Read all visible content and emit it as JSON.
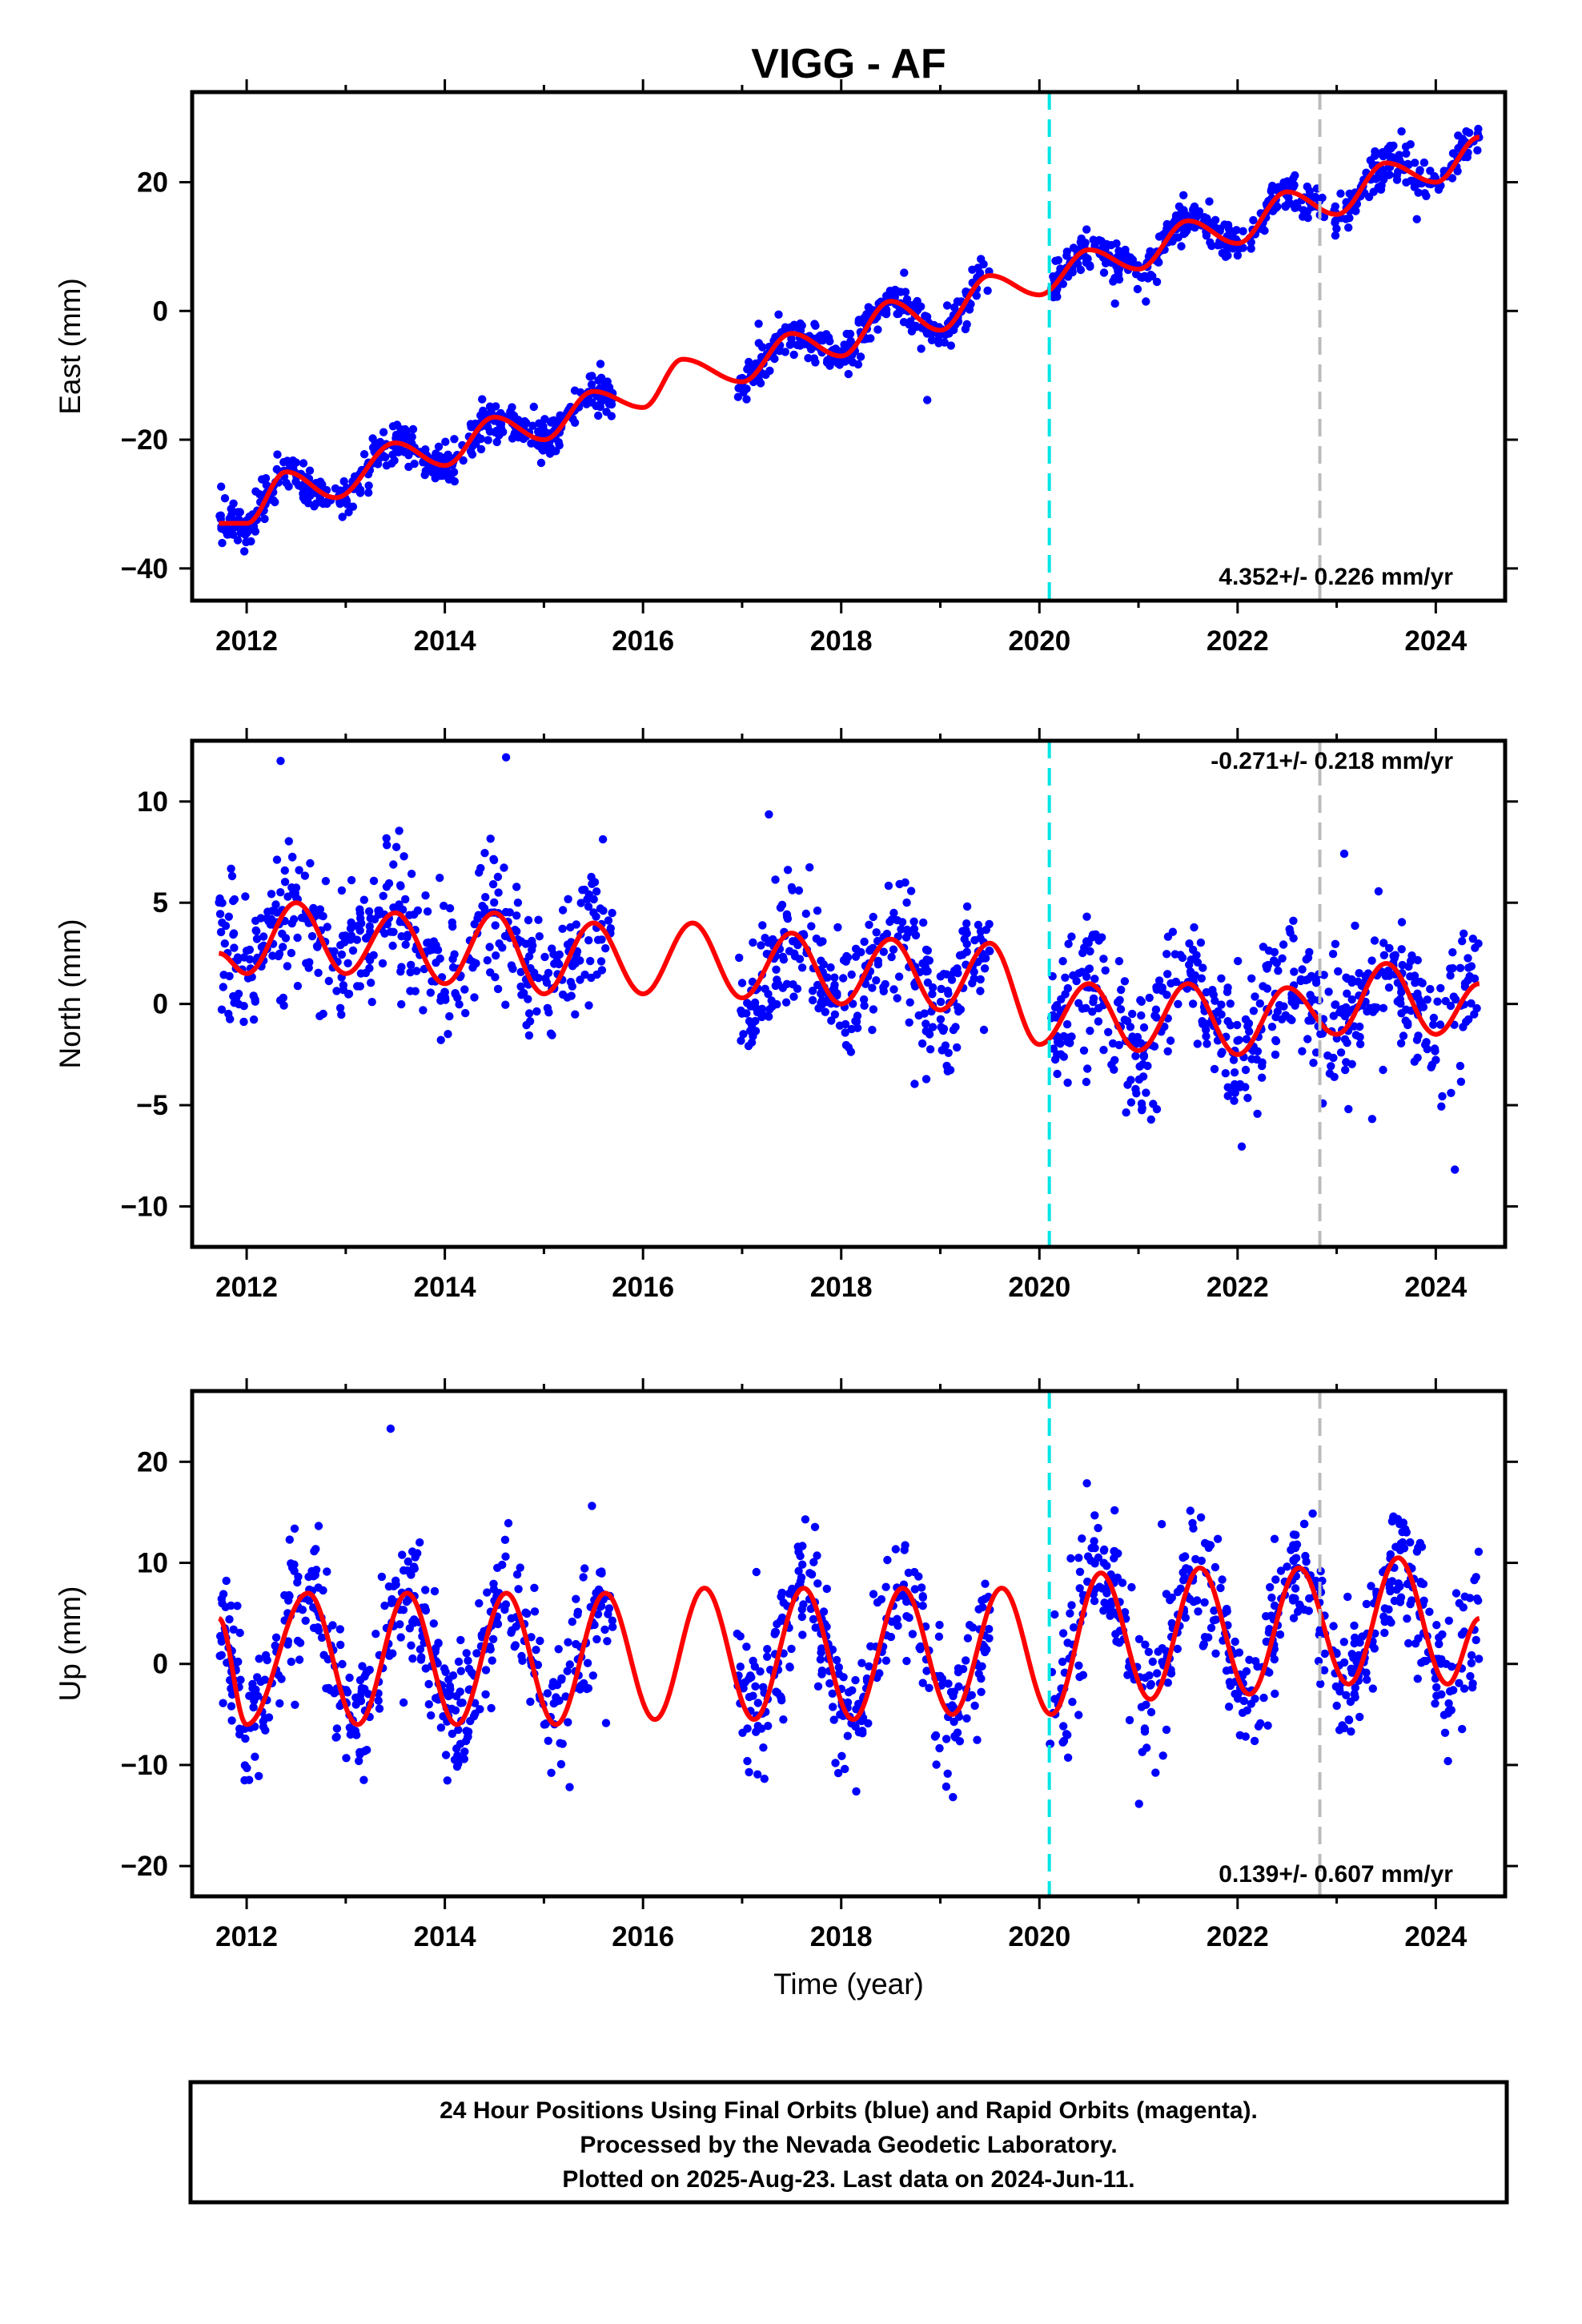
{
  "title": "VIGG - AF",
  "xlabel": "Time (year)",
  "x_ticks": [
    "2012",
    "2014",
    "2016",
    "2018",
    "2020",
    "2022",
    "2024"
  ],
  "colors": {
    "data": "#0000ff",
    "fit": "#ff0000",
    "event_cyan": "#00e5e5",
    "event_gray": "#bbbbbb"
  },
  "chart_data": [
    {
      "type": "scatter",
      "component": "East",
      "ylabel": "East (mm)",
      "ylim": [
        -45,
        34
      ],
      "y_ticks": [
        "−40",
        "−20",
        "0",
        "20"
      ],
      "rate_text": "4.352+/- 0.226 mm/yr",
      "rate_mm_per_yr": 4.352,
      "rate_sigma": 0.226,
      "xlim": [
        2011.45,
        2024.7
      ],
      "data_start": 2011.72,
      "data_end": 2024.44,
      "gaps": [
        [
          2015.7,
          2016.95
        ],
        [
          2019.5,
          2020.1
        ]
      ],
      "event_lines": [
        {
          "x": 2020.1,
          "color": "cyan"
        },
        {
          "x": 2022.83,
          "color": "gray"
        }
      ],
      "fit_samples": {
        "x": [
          2011.72,
          2012.0,
          2012.4,
          2012.9,
          2013.5,
          2014.0,
          2014.5,
          2015.0,
          2015.5,
          2016.0,
          2016.4,
          2017.0,
          2017.5,
          2018.0,
          2018.5,
          2019.0,
          2019.5,
          2020.0,
          2020.5,
          2021.0,
          2021.5,
          2022.0,
          2022.5,
          2023.0,
          2023.5,
          2024.0,
          2024.44
        ],
        "y": [
          -33,
          -33,
          -25,
          -29,
          -20.5,
          -24,
          -16.5,
          -20,
          -12.5,
          -15,
          -7.5,
          -11,
          -3.5,
          -7,
          1.5,
          -3,
          5.5,
          2.5,
          9.5,
          6.5,
          14,
          10.5,
          18.5,
          15,
          23,
          20,
          27
        ]
      }
    },
    {
      "type": "scatter",
      "component": "North",
      "ylabel": "North (mm)",
      "ylim": [
        -12,
        13
      ],
      "y_ticks": [
        "−10",
        "−5",
        "0",
        "5",
        "10"
      ],
      "rate_text": "-0.271+/- 0.218 mm/yr",
      "rate_mm_per_yr": -0.271,
      "rate_sigma": 0.218,
      "xlim": [
        2011.45,
        2024.7
      ],
      "data_start": 2011.72,
      "data_end": 2024.44,
      "gaps": [
        [
          2015.7,
          2016.95
        ],
        [
          2019.5,
          2020.1
        ]
      ],
      "event_lines": [
        {
          "x": 2020.1,
          "color": "cyan"
        },
        {
          "x": 2022.83,
          "color": "gray"
        }
      ],
      "fit_samples": {
        "x": [
          2011.72,
          2012.0,
          2012.5,
          2013.0,
          2013.5,
          2014.0,
          2014.5,
          2015.0,
          2015.5,
          2016.0,
          2016.5,
          2017.0,
          2017.5,
          2018.0,
          2018.5,
          2019.0,
          2019.5,
          2020.0,
          2020.5,
          2021.0,
          2021.5,
          2022.0,
          2022.5,
          2023.0,
          2023.5,
          2024.0,
          2024.44
        ],
        "y": [
          2.5,
          1.5,
          5,
          1.5,
          4.5,
          1,
          4.5,
          0.5,
          4,
          0.5,
          4,
          0.3,
          3.5,
          0,
          3.2,
          -0.3,
          3,
          -2,
          1,
          -2.3,
          1,
          -2.5,
          0.8,
          -1.5,
          2,
          -1.5,
          1
        ]
      }
    },
    {
      "type": "scatter",
      "component": "Up",
      "ylabel": "Up (mm)",
      "ylim": [
        -23,
        27
      ],
      "y_ticks": [
        "−20",
        "−10",
        "0",
        "10",
        "20"
      ],
      "rate_text": "0.139+/- 0.607 mm/yr",
      "rate_mm_per_yr": 0.139,
      "rate_sigma": 0.607,
      "xlim": [
        2011.45,
        2024.7
      ],
      "data_start": 2011.72,
      "data_end": 2024.44,
      "gaps": [
        [
          2015.7,
          2016.95
        ],
        [
          2019.5,
          2020.1
        ]
      ],
      "event_lines": [
        {
          "x": 2020.1,
          "color": "cyan"
        },
        {
          "x": 2022.83,
          "color": "gray"
        }
      ],
      "fit_samples": {
        "x": [
          2011.72,
          2012.0,
          2012.62,
          2013.12,
          2013.62,
          2014.12,
          2014.62,
          2015.12,
          2015.62,
          2016.12,
          2016.62,
          2017.12,
          2017.62,
          2018.12,
          2018.62,
          2019.12,
          2019.62,
          2020.12,
          2020.62,
          2021.12,
          2021.62,
          2022.12,
          2022.62,
          2023.12,
          2023.62,
          2024.12,
          2024.44
        ],
        "y": [
          4.5,
          -6,
          7,
          -6,
          7,
          -6,
          7,
          -6,
          7,
          -5.5,
          7.5,
          -5.5,
          7.5,
          -5.5,
          7.5,
          -5,
          7.5,
          -5,
          9,
          -3.5,
          9.5,
          -3,
          9.5,
          -2,
          10.5,
          -2,
          4.5
        ]
      }
    }
  ],
  "footer": {
    "line1": "24 Hour Positions Using Final Orbits (blue) and Rapid Orbits (magenta).",
    "line2": "Processed by the Nevada Geodetic Laboratory.",
    "line3": "Plotted on 2025-Aug-23. Last data on 2024-Jun-11."
  }
}
